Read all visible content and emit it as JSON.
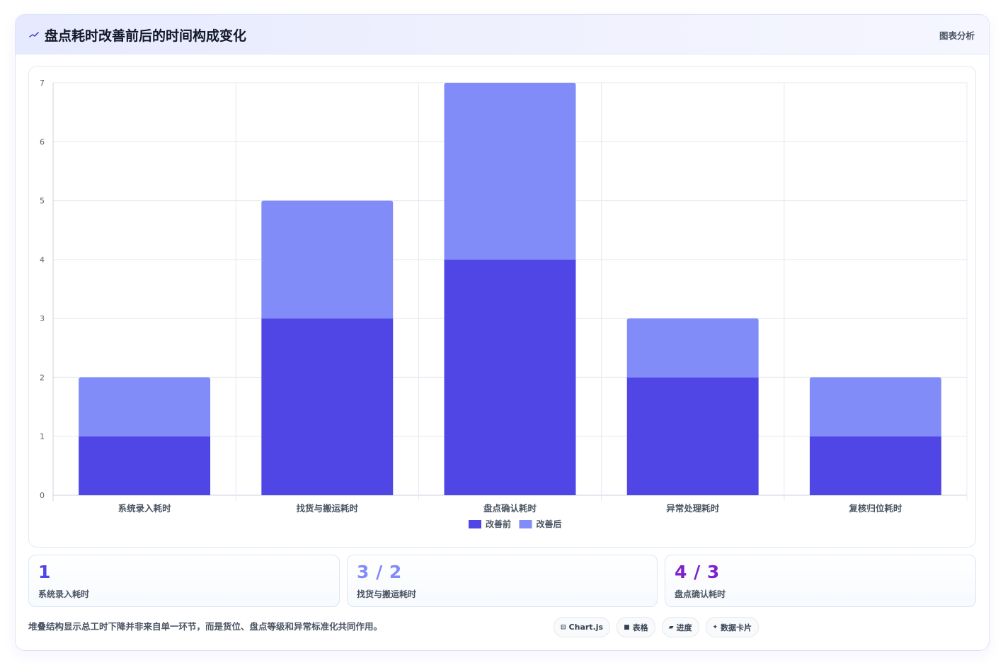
{
  "header": {
    "title": "盘点耗时改善前后的时间构成变化",
    "tag": "图表分析",
    "icon": "trend-line-icon"
  },
  "chart_data": {
    "type": "bar",
    "stacked": true,
    "categories": [
      "系统录入耗时",
      "找货与搬运耗时",
      "盘点确认耗时",
      "异常处理耗时",
      "复核归位耗时"
    ],
    "series": [
      {
        "name": "改善前",
        "values": [
          1,
          3,
          4,
          2,
          1
        ],
        "color": "#4f46e5"
      },
      {
        "name": "改善后",
        "values": [
          1,
          2,
          3,
          1,
          1
        ],
        "color": "#818cf8"
      }
    ],
    "y_ticks": [
      "0",
      "1",
      "2",
      "3",
      "4",
      "5",
      "6",
      "7"
    ],
    "ylim": [
      0,
      7
    ],
    "grid": true,
    "legend_position": "bottom"
  },
  "stats": [
    {
      "value": "1",
      "label": "系统录入耗时",
      "color": "#4f46e5"
    },
    {
      "value": "3 / 2",
      "label": "找货与搬运耗时",
      "color": "#818cf8"
    },
    {
      "value": "4 / 3",
      "label": "盘点确认耗时",
      "color": "#7e22ce"
    }
  ],
  "footer": {
    "note": "堆叠结构显示总工时下降并非来自单一环节，而是货位、盘点等级和异常标准化共同作用。",
    "chips": [
      {
        "icon": "⊟",
        "icon_name": "chart-icon",
        "label": "Chart.js"
      },
      {
        "icon": "■",
        "icon_name": "table-icon",
        "label": "表格"
      },
      {
        "icon": "▰",
        "icon_name": "progress-icon",
        "label": "进度"
      },
      {
        "icon": "✦",
        "icon_name": "sparkle-icon",
        "label": "数据卡片"
      }
    ]
  }
}
